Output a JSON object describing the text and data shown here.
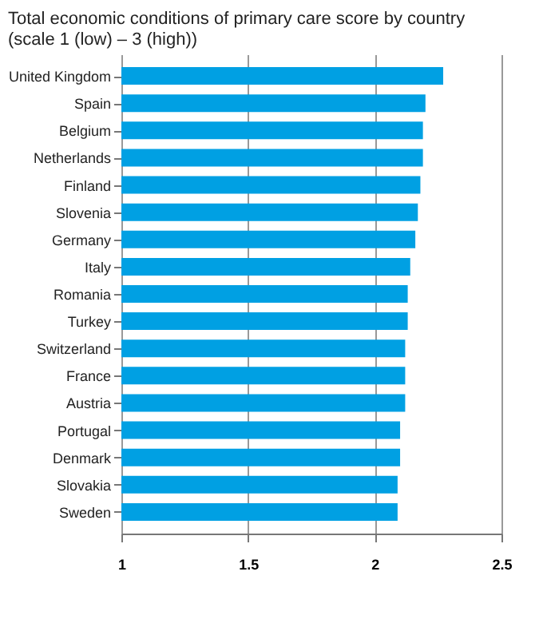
{
  "chart_data": {
    "type": "bar",
    "orientation": "horizontal",
    "title": [
      "Total economic conditions of primary care score by country",
      "(scale 1 (low) – 3 (high))"
    ],
    "categories": [
      "United Kingdom",
      "Spain",
      "Belgium",
      "Netherlands",
      "Finland",
      "Slovenia",
      "Germany",
      "Italy",
      "Romania",
      "Turkey",
      "Switzerland",
      "France",
      "Austria",
      "Portugal",
      "Denmark",
      "Slovakia",
      "Sweden"
    ],
    "values": [
      2.27,
      2.2,
      2.19,
      2.19,
      2.18,
      2.17,
      2.16,
      2.14,
      2.13,
      2.13,
      2.12,
      2.12,
      2.12,
      2.1,
      2.1,
      2.09,
      2.09
    ],
    "color": "#00a0e3",
    "xlim": [
      1,
      2.5
    ],
    "xticks": [
      1,
      1.5,
      2,
      2.5
    ],
    "grid": "x"
  }
}
